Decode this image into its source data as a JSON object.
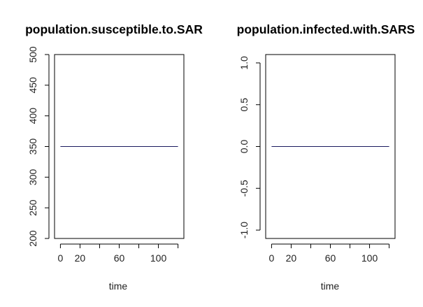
{
  "chart_data": [
    {
      "type": "line",
      "title": "population.susceptible.to.SAR",
      "xlabel": "time",
      "ylabel": "",
      "xlim": [
        -6,
        126
      ],
      "ylim": [
        200,
        500
      ],
      "x_ticks": [
        0,
        20,
        40,
        60,
        80,
        100,
        120
      ],
      "x_tick_labels": [
        "0",
        "20",
        "",
        "60",
        "",
        "100",
        ""
      ],
      "y_ticks": [
        200,
        250,
        300,
        350,
        400,
        450,
        500
      ],
      "y_tick_labels": [
        "200",
        "250",
        "300",
        "350",
        "400",
        "450",
        "500"
      ],
      "series": [
        {
          "x": [
            0,
            120
          ],
          "y": [
            350,
            350
          ],
          "color": "#1a1a5e"
        }
      ],
      "grid": false
    },
    {
      "type": "line",
      "title": "population.infected.with.SARS",
      "xlabel": "time",
      "ylabel": "",
      "xlim": [
        -6,
        126
      ],
      "ylim": [
        -1.1,
        1.1
      ],
      "x_ticks": [
        0,
        20,
        40,
        60,
        80,
        100,
        120
      ],
      "x_tick_labels": [
        "0",
        "20",
        "",
        "60",
        "",
        "100",
        ""
      ],
      "y_ticks": [
        -1.0,
        -0.5,
        0.0,
        0.5,
        1.0
      ],
      "y_tick_labels": [
        "-1.0",
        "-0.5",
        "0.0",
        "0.5",
        "1.0"
      ],
      "series": [
        {
          "x": [
            0,
            120
          ],
          "y": [
            0,
            0
          ],
          "color": "#1a1a5e"
        }
      ],
      "grid": false
    }
  ]
}
